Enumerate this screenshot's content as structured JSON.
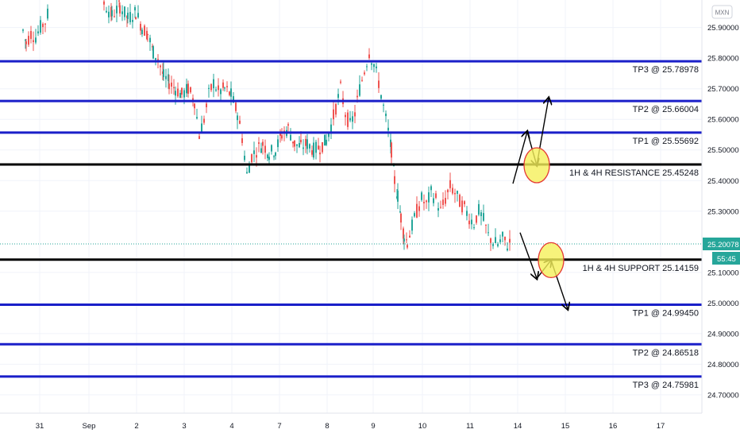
{
  "currency_badge": "MXN",
  "colors": {
    "up": "#26a69a",
    "down": "#ef5350",
    "target_line": "#1a1fc9",
    "key_line": "#000000",
    "marker_fill": "#f5f05a",
    "marker_stroke": "#e53935",
    "current_price_bg": "#26a69a",
    "grid": "#f0f3fa"
  },
  "chart_data": {
    "type": "candlestick",
    "title": "",
    "x_ticks": [
      "31",
      "Sep",
      "2",
      "3",
      "4",
      "7",
      "8",
      "9",
      "10",
      "11",
      "14",
      "15",
      "16",
      "17"
    ],
    "y_ticks": [
      "25.90000",
      "25.80000",
      "25.70000",
      "25.60000",
      "25.50000",
      "25.40000",
      "25.30000",
      "25.10000",
      "25.00000",
      "24.90000",
      "24.80000",
      "24.70000"
    ],
    "ylim": [
      24.64,
      25.99
    ],
    "current_price": {
      "value": "25.20078",
      "countdown": "55:45"
    },
    "levels": [
      {
        "label": "TP3 @ 25.78978",
        "value": 25.78978,
        "kind": "target"
      },
      {
        "label": "TP2 @ 25.66004",
        "value": 25.66004,
        "kind": "target"
      },
      {
        "label": "TP1 @ 25.55692",
        "value": 25.55692,
        "kind": "target"
      },
      {
        "label": "1H & 4H RESISTANCE 25.45248",
        "value": 25.45248,
        "kind": "key"
      },
      {
        "label": "1H & 4H SUPPORT 25.14159",
        "value": 25.14159,
        "kind": "key"
      },
      {
        "label": "TP1 @ 24.99450",
        "value": 24.9945,
        "kind": "target"
      },
      {
        "label": "TP2 @ 24.86518",
        "value": 24.86518,
        "kind": "target"
      },
      {
        "label": "TP3 @ 24.75981",
        "value": 24.75981,
        "kind": "target"
      }
    ],
    "price_path": [
      [
        28,
        25.89
      ],
      [
        32,
        25.85
      ],
      [
        38,
        25.88
      ],
      [
        44,
        25.87
      ],
      [
        50,
        25.9
      ],
      [
        56,
        25.92
      ],
      [
        60,
        25.95
      ],
      [
        130,
        25.98
      ],
      [
        140,
        25.94
      ],
      [
        150,
        25.97
      ],
      [
        160,
        25.93
      ],
      [
        170,
        25.95
      ],
      [
        178,
        25.9
      ],
      [
        185,
        25.88
      ],
      [
        192,
        25.82
      ],
      [
        198,
        25.8
      ],
      [
        205,
        25.74
      ],
      [
        212,
        25.72
      ],
      [
        220,
        25.7
      ],
      [
        228,
        25.68
      ],
      [
        236,
        25.7
      ],
      [
        244,
        25.66
      ],
      [
        250,
        25.55
      ],
      [
        256,
        25.6
      ],
      [
        262,
        25.68
      ],
      [
        268,
        25.72
      ],
      [
        274,
        25.69
      ],
      [
        282,
        25.7
      ],
      [
        290,
        25.68
      ],
      [
        298,
        25.62
      ],
      [
        304,
        25.54
      ],
      [
        310,
        25.42
      ],
      [
        316,
        25.48
      ],
      [
        322,
        25.5
      ],
      [
        330,
        25.52
      ],
      [
        338,
        25.49
      ],
      [
        346,
        25.5
      ],
      [
        354,
        25.55
      ],
      [
        362,
        25.57
      ],
      [
        370,
        25.52
      ],
      [
        378,
        25.51
      ],
      [
        386,
        25.52
      ],
      [
        394,
        25.5
      ],
      [
        402,
        25.51
      ],
      [
        410,
        25.53
      ],
      [
        416,
        25.58
      ],
      [
        422,
        25.64
      ],
      [
        428,
        25.7
      ],
      [
        434,
        25.62
      ],
      [
        440,
        25.58
      ],
      [
        446,
        25.62
      ],
      [
        452,
        25.7
      ],
      [
        458,
        25.76
      ],
      [
        464,
        25.82
      ],
      [
        470,
        25.78
      ],
      [
        476,
        25.72
      ],
      [
        482,
        25.64
      ],
      [
        488,
        25.56
      ],
      [
        492,
        25.5
      ],
      [
        496,
        25.4
      ],
      [
        500,
        25.35
      ],
      [
        504,
        25.28
      ],
      [
        508,
        25.22
      ],
      [
        512,
        25.2
      ],
      [
        518,
        25.25
      ],
      [
        524,
        25.3
      ],
      [
        530,
        25.34
      ],
      [
        536,
        25.32
      ],
      [
        542,
        25.36
      ],
      [
        548,
        25.34
      ],
      [
        554,
        25.3
      ],
      [
        560,
        25.34
      ],
      [
        566,
        25.38
      ],
      [
        572,
        25.36
      ],
      [
        578,
        25.33
      ],
      [
        584,
        25.31
      ],
      [
        590,
        25.28
      ],
      [
        596,
        25.26
      ],
      [
        602,
        25.3
      ],
      [
        608,
        25.27
      ],
      [
        614,
        25.22
      ],
      [
        620,
        25.2
      ],
      [
        626,
        25.19
      ],
      [
        632,
        25.21
      ],
      [
        638,
        25.19
      ],
      [
        642,
        25.2
      ]
    ],
    "annotations": [
      {
        "type": "arrow",
        "from": [
          13.9,
          25.39
        ],
        "to": [
          14.2,
          25.56
        ]
      },
      {
        "type": "arrow",
        "from": [
          14.2,
          25.56
        ],
        "to": [
          14.4,
          25.45
        ]
      },
      {
        "type": "arrow",
        "from": [
          14.4,
          25.45
        ],
        "to": [
          14.65,
          25.67
        ]
      },
      {
        "type": "arrow",
        "from": [
          14.05,
          25.23
        ],
        "to": [
          14.4,
          25.08
        ]
      },
      {
        "type": "arrow",
        "from": [
          14.4,
          25.08
        ],
        "to": [
          14.7,
          25.14
        ]
      },
      {
        "type": "arrow",
        "from": [
          14.7,
          25.14
        ],
        "to": [
          15.05,
          24.98
        ]
      },
      {
        "type": "circle-marker",
        "at": [
          14.4,
          25.45
        ]
      },
      {
        "type": "circle-marker",
        "at": [
          14.7,
          25.14
        ]
      }
    ]
  }
}
